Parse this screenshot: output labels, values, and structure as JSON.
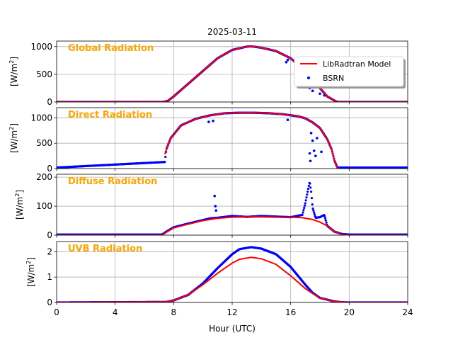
{
  "figure": {
    "title": "2025-03-11",
    "xlabel": "Hour (UTC)",
    "x_ticks": [
      0,
      4,
      8,
      12,
      16,
      20,
      24
    ],
    "x_tick_labels": [
      "0",
      "4",
      "8",
      "12",
      "16",
      "20",
      "24"
    ],
    "xlim": [
      0,
      24
    ]
  },
  "legend": {
    "placement": "panel-1 right",
    "entries": [
      {
        "label": "LibRadtran Model",
        "color": "#ff0000",
        "marker": "line"
      },
      {
        "label": "BSRN",
        "color": "#0000ff",
        "marker": "dot"
      }
    ]
  },
  "colors": {
    "model": "#ff0000",
    "measured": "#0000ff",
    "panel_title": "#ffa500",
    "grid": "#b0b0b0"
  },
  "chart_data": [
    {
      "type": "line",
      "title": "Global Radiation",
      "ylabel_base": "[W/m",
      "ylabel_sup": "2",
      "ylabel_end": "]",
      "ylim": [
        0,
        1100
      ],
      "y_ticks": [
        0,
        500,
        1000
      ],
      "y_tick_labels": [
        "0",
        "500",
        "1000"
      ],
      "grid": true,
      "series": [
        {
          "name": "LibRadtran Model",
          "style": "line",
          "x": [
            0,
            7.3,
            7.6,
            8,
            9,
            10,
            11,
            12,
            13,
            13.3,
            14,
            15,
            16,
            17,
            17.5,
            18,
            18.5,
            19,
            19.2,
            24
          ],
          "y": [
            0,
            0,
            20,
            100,
            330,
            560,
            790,
            940,
            1000,
            1005,
            980,
            920,
            790,
            560,
            420,
            250,
            100,
            25,
            0,
            0
          ]
        },
        {
          "name": "BSRN",
          "style": "dots",
          "x": [
            0,
            7.3,
            7.6,
            8,
            9,
            10,
            11,
            12,
            13,
            13.3,
            14,
            15,
            16,
            17,
            17.5,
            18,
            18.5,
            19,
            19.2,
            24
          ],
          "y": [
            0,
            0,
            20,
            100,
            330,
            560,
            790,
            940,
            1000,
            1005,
            980,
            920,
            790,
            560,
            420,
            250,
            100,
            25,
            0,
            0
          ],
          "outliers_x": [
            15.7,
            15.8,
            16.7,
            17.0,
            17.3,
            17.4,
            17.5,
            17.8,
            18.0,
            18.3
          ],
          "outliers_y": [
            720,
            760,
            600,
            420,
            250,
            380,
            200,
            330,
            150,
            120
          ]
        }
      ]
    },
    {
      "type": "line",
      "title": "Direct Radiation",
      "ylabel_base": "[W/m",
      "ylabel_sup": "2",
      "ylabel_end": "]",
      "ylim": [
        0,
        1200
      ],
      "y_ticks": [
        0,
        500,
        1000
      ],
      "y_tick_labels": [
        "0",
        "500",
        "1000"
      ],
      "grid": true,
      "series": [
        {
          "name": "LibRadtran Model",
          "style": "line",
          "x": [
            7.4,
            7.5,
            7.8,
            8.5,
            9.5,
            10.5,
            11.5,
            12.5,
            13.5,
            14.5,
            15.5,
            16.5,
            17.0,
            17.5,
            18.0,
            18.5,
            18.8,
            19.0,
            19.2
          ],
          "y": [
            280,
            380,
            600,
            850,
            980,
            1050,
            1090,
            1100,
            1100,
            1090,
            1070,
            1030,
            990,
            910,
            800,
            580,
            380,
            150,
            0
          ]
        },
        {
          "name": "BSRN",
          "style": "dots",
          "x": [
            0,
            7.4,
            7.5,
            7.8,
            8.5,
            9.5,
            10.5,
            11.5,
            12.5,
            13.5,
            14.5,
            15.5,
            16.5,
            17.0,
            17.5,
            18.0,
            18.5,
            18.8,
            19.0,
            19.2,
            24
          ],
          "y": [
            20,
            130,
            380,
            600,
            850,
            980,
            1050,
            1090,
            1100,
            1100,
            1090,
            1070,
            1030,
            990,
            910,
            800,
            580,
            380,
            150,
            20,
            20
          ],
          "outliers_x": [
            10.4,
            10.7,
            15.8,
            17.3,
            17.35,
            17.4,
            17.5,
            17.6,
            17.7,
            17.8,
            18.1
          ],
          "outliers_y": [
            920,
            940,
            960,
            300,
            150,
            700,
            550,
            350,
            250,
            600,
            330
          ]
        }
      ]
    },
    {
      "type": "line",
      "title": "Diffuse Radiation",
      "ylabel_base": "[W/m",
      "ylabel_sup": "2",
      "ylabel_end": "]",
      "ylim": [
        0,
        210
      ],
      "y_ticks": [
        0,
        100,
        200
      ],
      "y_tick_labels": [
        "0",
        "100",
        "200"
      ],
      "grid": true,
      "series": [
        {
          "name": "LibRadtran Model",
          "style": "line",
          "x": [
            0,
            7.2,
            7.5,
            8,
            9,
            10,
            11,
            12,
            13,
            14,
            15,
            16,
            16.8,
            17.5,
            18.0,
            18.5,
            19.0,
            19.5,
            20,
            24
          ],
          "y": [
            0,
            0,
            10,
            25,
            38,
            50,
            58,
            62,
            63,
            63,
            62,
            62,
            60,
            54,
            45,
            32,
            12,
            2,
            0,
            0
          ]
        },
        {
          "name": "BSRN",
          "style": "dots",
          "x": [
            0,
            7.2,
            7.5,
            8,
            9,
            10,
            10.5,
            11,
            12,
            13,
            14,
            15,
            16,
            16.8,
            17.0,
            17.2,
            17.3,
            17.4,
            17.5,
            17.7,
            18.0,
            18.3,
            18.5,
            19.0,
            19.5,
            20,
            24
          ],
          "y": [
            2,
            2,
            12,
            27,
            40,
            52,
            58,
            60,
            66,
            63,
            66,
            64,
            62,
            70,
            110,
            160,
            185,
            150,
            95,
            60,
            62,
            70,
            32,
            12,
            4,
            2,
            2
          ],
          "outliers_x": [
            10.8,
            10.85,
            10.9
          ],
          "outliers_y": [
            135,
            100,
            85
          ]
        }
      ]
    },
    {
      "type": "line",
      "title": "UVB Radiation",
      "ylabel_base": "[W/m",
      "ylabel_sup": "2",
      "ylabel_end": "]",
      "ylim": [
        0,
        2.4
      ],
      "y_ticks": [
        0,
        1,
        2
      ],
      "y_tick_labels": [
        "0",
        "1",
        "2"
      ],
      "grid": true,
      "series": [
        {
          "name": "LibRadtran Model",
          "style": "line",
          "x": [
            0,
            7.5,
            8,
            9,
            10,
            11,
            12,
            12.5,
            13.3,
            14,
            15,
            16,
            17,
            17.5,
            18,
            19,
            20,
            24
          ],
          "y": [
            0,
            0.02,
            0.08,
            0.3,
            0.7,
            1.15,
            1.55,
            1.7,
            1.78,
            1.72,
            1.5,
            1.05,
            0.55,
            0.35,
            0.18,
            0.04,
            0,
            0
          ]
        },
        {
          "name": "BSRN",
          "style": "dots",
          "x": [
            0,
            7.5,
            8,
            9,
            10,
            11,
            12,
            12.5,
            13.3,
            14,
            15,
            16,
            17,
            17.5,
            18,
            19,
            19.5,
            20,
            24
          ],
          "y": [
            0,
            0.02,
            0.08,
            0.3,
            0.75,
            1.35,
            1.9,
            2.1,
            2.18,
            2.12,
            1.9,
            1.4,
            0.7,
            0.38,
            0.18,
            0.04,
            0.01,
            0,
            0
          ]
        }
      ]
    }
  ]
}
